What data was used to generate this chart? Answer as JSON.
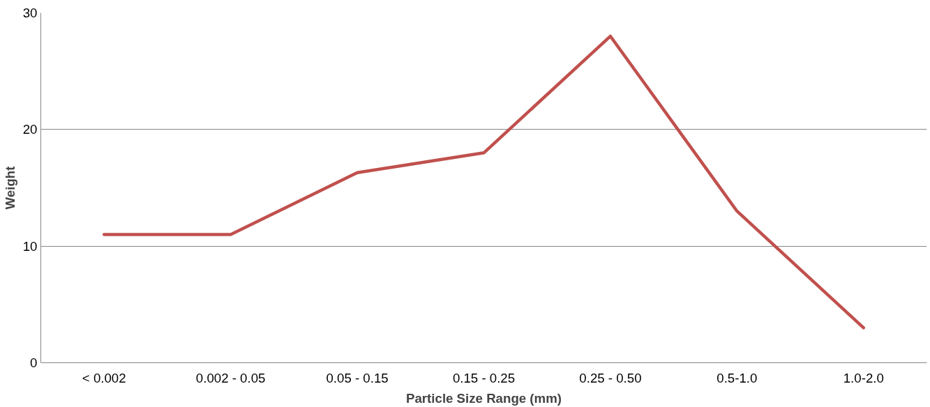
{
  "chart_data": {
    "type": "line",
    "xlabel": "Particle Size Range (mm)",
    "ylabel": "Weight",
    "categories": [
      "< 0.002",
      "0.002 - 0.05",
      "0.05 - 0.15",
      "0.15 - 0.25",
      "0.25 - 0.50",
      "0.5-1.0",
      "1.0-2.0"
    ],
    "series": [
      {
        "color": "#c0504d",
        "values": [
          11,
          11,
          16.3,
          18,
          28,
          13,
          3
        ]
      }
    ],
    "ylim": [
      0,
      30
    ],
    "yticks": [
      0,
      10,
      20,
      30
    ],
    "grid": "y"
  }
}
